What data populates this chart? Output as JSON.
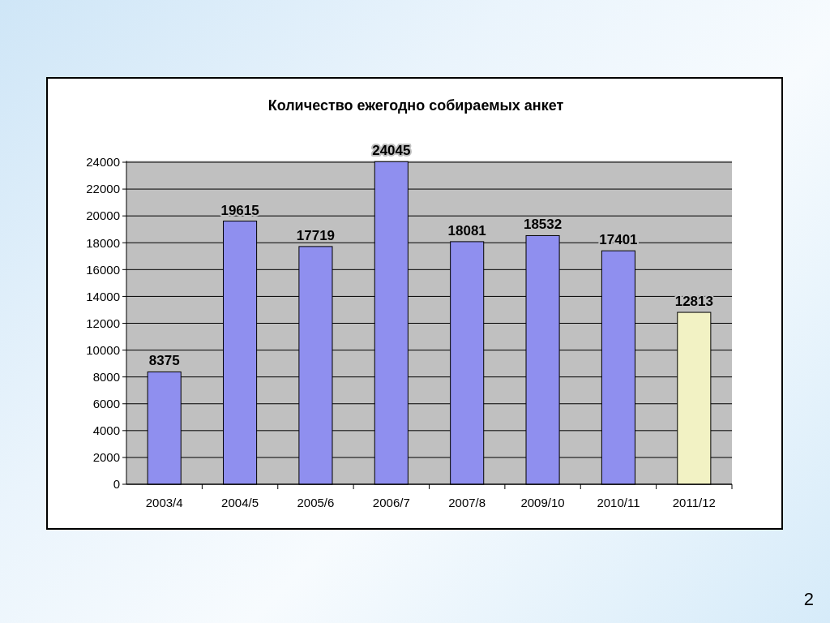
{
  "chart_data": {
    "type": "bar",
    "title": "Количество ежегодно собираемых анкет",
    "categories": [
      "2003/4",
      "2004/5",
      "2005/6",
      "2006/7",
      "2007/8",
      "2009/10",
      "2010/11",
      "2011/12"
    ],
    "values": [
      8375,
      19615,
      17719,
      24045,
      18081,
      18532,
      17401,
      12813
    ],
    "colors": [
      "#8f8fef",
      "#8f8fef",
      "#8f8fef",
      "#8f8fef",
      "#8f8fef",
      "#8f8fef",
      "#8f8fef",
      "#f2f2c4"
    ],
    "ylim": [
      0,
      24100
    ],
    "yticks": [
      0,
      2000,
      4000,
      6000,
      8000,
      10000,
      12000,
      14000,
      16000,
      18000,
      20000,
      22000,
      24000
    ],
    "grid": "y",
    "data_labels": true,
    "annotations": [
      "2"
    ]
  }
}
